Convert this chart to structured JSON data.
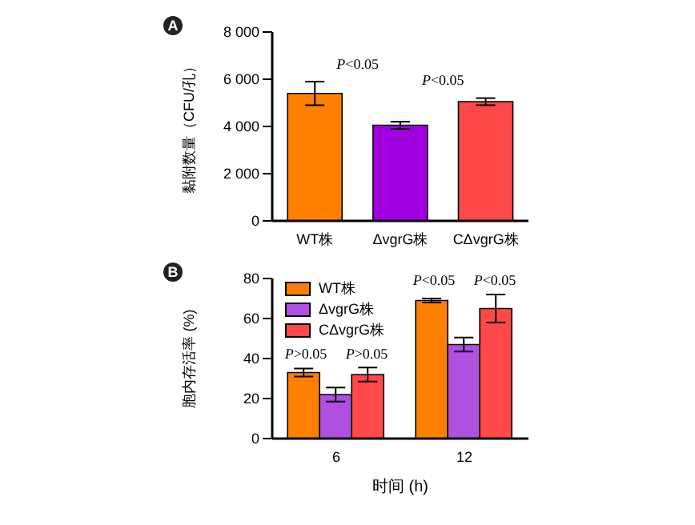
{
  "chart_data": [
    {
      "type": "bar",
      "title": "A",
      "categories": [
        "WT株",
        "ΔvgrG株",
        "CΔvgrG株"
      ],
      "values": [
        5400,
        4050,
        5050
      ],
      "errors": [
        500,
        150,
        150
      ],
      "colors": [
        "#ff8000",
        "#a000e0",
        "#ff4848"
      ],
      "ylabel": "黏附数量（CFU/孔）",
      "ylim": [
        0,
        8000
      ],
      "yticks": [
        {
          "value": 0,
          "label": "0"
        },
        {
          "value": 2000,
          "label": "2 000"
        },
        {
          "value": 4000,
          "label": "4 000"
        },
        {
          "value": 6000,
          "label": "6 000"
        },
        {
          "value": 8000,
          "label": "8 000"
        }
      ],
      "grid": false,
      "legend": false,
      "annotations": [
        "P<0.05",
        "P<0.05"
      ]
    },
    {
      "type": "bar",
      "title": "B",
      "categories": [
        "6",
        "12"
      ],
      "xlabel": "时间 (h)",
      "ylabel": "胞内存活率 (%)",
      "ylim": [
        0,
        80
      ],
      "yticks": [
        0,
        20,
        40,
        60,
        80
      ],
      "grid": false,
      "legend": "top left",
      "series": [
        {
          "name": "WT株",
          "color": "#ff8000",
          "values": [
            33,
            69
          ],
          "errors": [
            2,
            1
          ]
        },
        {
          "name": "ΔvgrG株",
          "color": "#b050e0",
          "values": [
            22,
            47
          ],
          "errors": [
            3.5,
            3.5
          ]
        },
        {
          "name": "CΔvgrG株",
          "color": "#ff4848",
          "values": [
            32,
            65
          ],
          "errors": [
            3.5,
            7
          ]
        }
      ],
      "annotations": [
        "P>0.05",
        "P>0.05",
        "P<0.05",
        "P<0.05"
      ]
    }
  ]
}
